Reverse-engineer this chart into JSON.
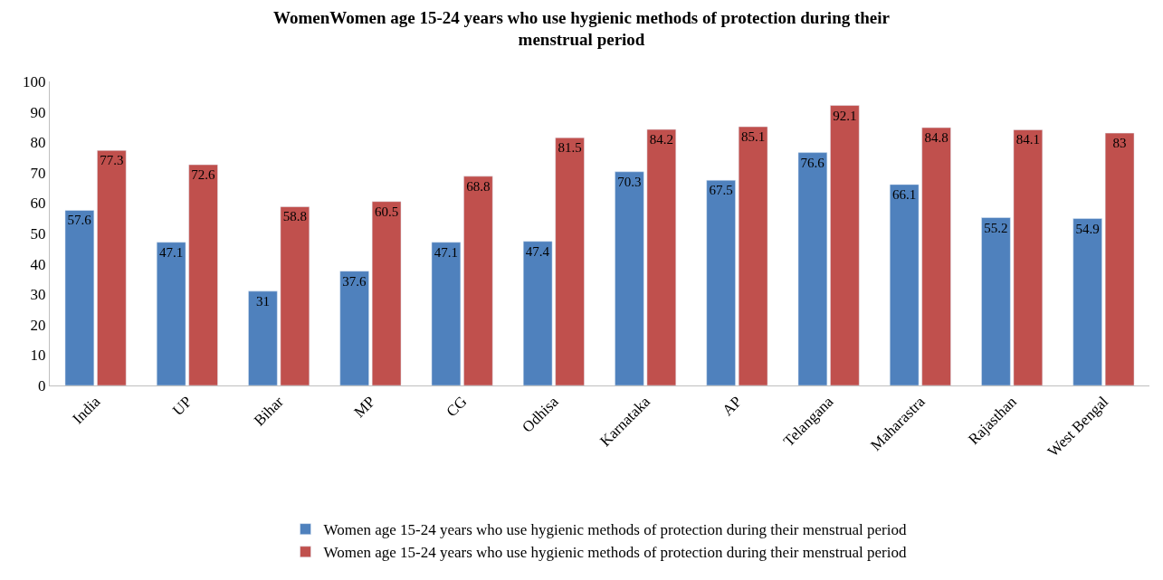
{
  "chart_data": {
    "type": "bar",
    "title": "WomenWomen age 15-24 years who use hygienic methods of protection during their menstrual period",
    "categories": [
      "India",
      "UP",
      "Bihar",
      "MP",
      "CG",
      "Odhisa",
      "Karnataka",
      "AP",
      "Telangana",
      "Maharastra",
      "Rajasthan",
      "West Bengal"
    ],
    "series": [
      {
        "name": "Women age 15-24 years who use hygienic methods of protection during their menstrual period",
        "color": "#4f81bd",
        "values": [
          57.6,
          47.1,
          31,
          37.6,
          47.1,
          47.4,
          70.3,
          67.5,
          76.6,
          66.1,
          55.2,
          54.9
        ]
      },
      {
        "name": "Women age 15-24 years who use hygienic methods of protection during their menstrual period",
        "color": "#c0504d",
        "values": [
          77.3,
          72.6,
          58.8,
          60.5,
          68.8,
          81.5,
          84.2,
          85.1,
          92.1,
          84.8,
          84.1,
          83
        ]
      }
    ],
    "ylim": [
      0,
      100
    ],
    "yticks": [
      0,
      10,
      20,
      30,
      40,
      50,
      60,
      70,
      80,
      90,
      100
    ],
    "data_labels": true,
    "grid": false,
    "legend": "bottom"
  }
}
